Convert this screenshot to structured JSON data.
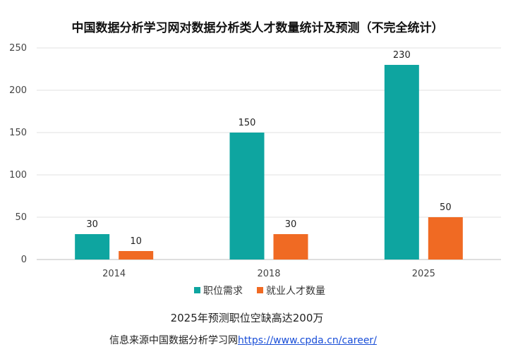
{
  "chart_data": {
    "type": "bar",
    "title": "中国数据分析学习网对数据分析类人才数量统计及预测（不完全统计）",
    "categories": [
      "2014",
      "2018",
      "2025"
    ],
    "series": [
      {
        "name": "职位需求",
        "values": [
          30,
          150,
          230
        ],
        "color": "#0ea5a0"
      },
      {
        "name": "就业人才数量",
        "values": [
          10,
          30,
          50
        ],
        "color": "#f06a23"
      }
    ],
    "ylim": [
      0,
      250
    ],
    "yticks": [
      0,
      50,
      100,
      150,
      200,
      250
    ],
    "grid": true,
    "legend": "bottom"
  },
  "note": "2025年预测职位空缺高达200万",
  "source": {
    "prefix": "信息来源中国数据分析学习网",
    "link_text": "https://www.cpda.cn/career/"
  }
}
